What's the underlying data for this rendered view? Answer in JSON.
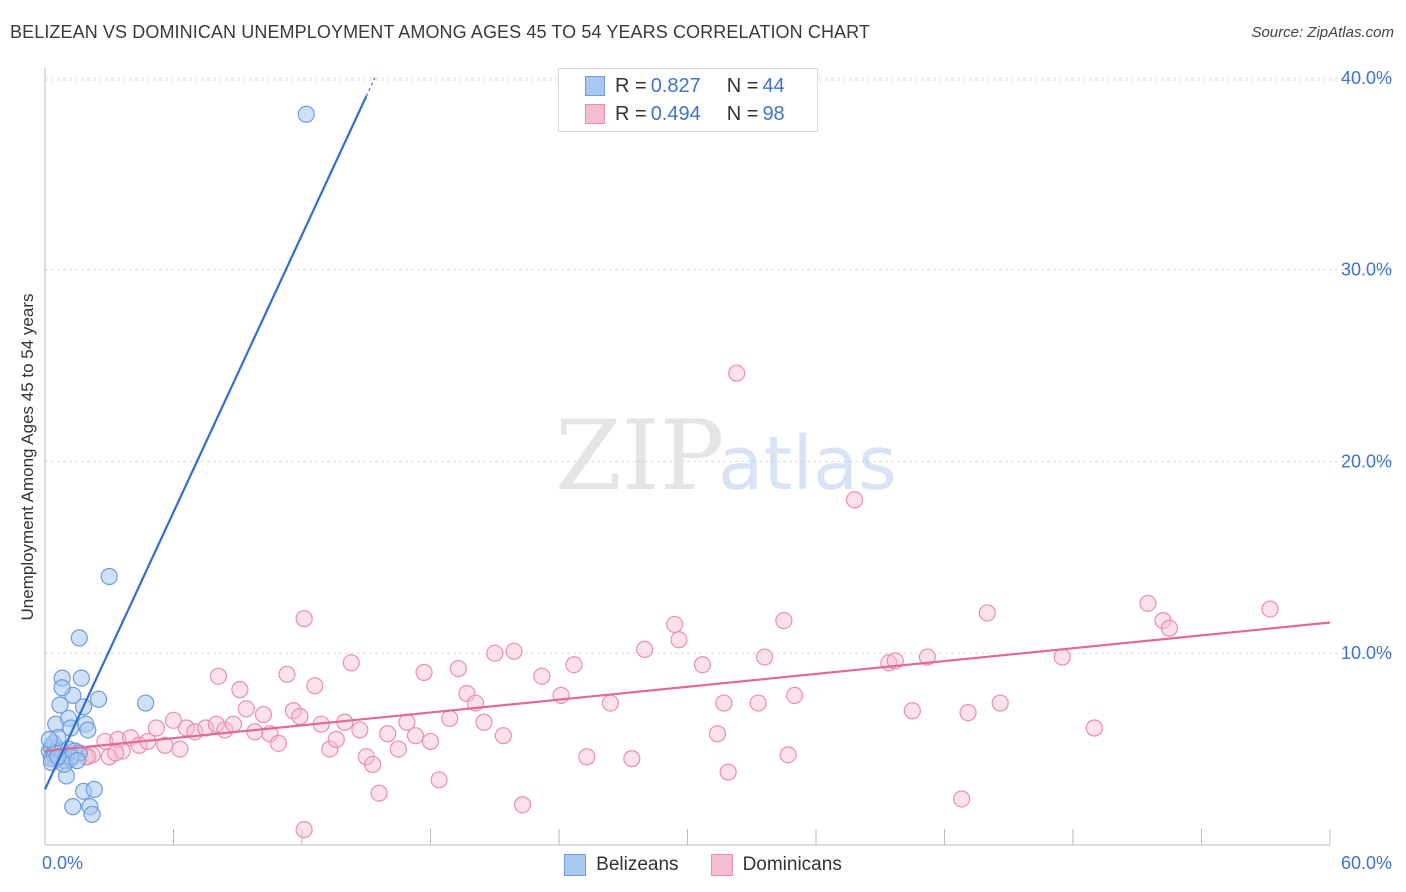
{
  "title": "BELIZEAN VS DOMINICAN UNEMPLOYMENT AMONG AGES 45 TO 54 YEARS CORRELATION CHART",
  "source": "Source: ZipAtlas.com",
  "watermark": {
    "zip": "ZIP",
    "atlas": "atlas"
  },
  "legend": {
    "rows": [
      {
        "r_label": "R =",
        "r_value": "0.827",
        "n_label": "N =",
        "n_value": "44"
      },
      {
        "r_label": "R =",
        "r_value": "0.494",
        "n_label": "N =",
        "n_value": "98"
      }
    ]
  },
  "colors": {
    "belizean_fill": "#a9c8f0",
    "belizean_stroke": "#6b9de0",
    "belizean_line": "#2f6fce",
    "dominican_fill": "#f6bcd0",
    "dominican_stroke": "#ea8fae",
    "dominican_line": "#e06a96",
    "axis_text": "#3f74c9",
    "grid": "#dddddd"
  },
  "chart_data": {
    "type": "scatter",
    "title": "BELIZEAN VS DOMINICAN UNEMPLOYMENT AMONG AGES 45 TO 54 YEARS CORRELATION CHART",
    "xlabel": "",
    "ylabel": "Unemployment Among Ages 45 to 54 years",
    "xlim": [
      0,
      60
    ],
    "ylim": [
      0,
      40
    ],
    "x_tick_labels": [
      "0.0%",
      "60.0%"
    ],
    "y_ticks": [
      10,
      20,
      30,
      40
    ],
    "y_tick_labels": [
      "10.0%",
      "20.0%",
      "30.0%",
      "40.0%"
    ],
    "grid": true,
    "legend_position": "top-center",
    "series": [
      {
        "name": "Belizeans",
        "r": 0.827,
        "n": 44,
        "trend": {
          "x0": 0.0,
          "y0": 2.9,
          "x1": 15.4,
          "y1": 40.0,
          "dashed_from_x": 15.0
        },
        "points": [
          [
            0.2,
            4.9
          ],
          [
            0.3,
            5.1
          ],
          [
            0.4,
            4.7
          ],
          [
            0.3,
            4.5
          ],
          [
            0.5,
            4.8
          ],
          [
            0.6,
            5.0
          ],
          [
            0.4,
            5.3
          ],
          [
            0.7,
            4.6
          ],
          [
            0.8,
            4.9
          ],
          [
            0.9,
            4.4
          ],
          [
            1.0,
            4.7
          ],
          [
            1.1,
            5.0
          ],
          [
            0.5,
            6.3
          ],
          [
            0.7,
            7.3
          ],
          [
            1.1,
            6.6
          ],
          [
            1.2,
            6.1
          ],
          [
            0.8,
            8.7
          ],
          [
            1.3,
            7.8
          ],
          [
            0.8,
            8.2
          ],
          [
            1.2,
            4.5
          ],
          [
            1.0,
            3.6
          ],
          [
            1.4,
            4.9
          ],
          [
            1.6,
            4.8
          ],
          [
            1.2,
            4.6
          ],
          [
            1.9,
            6.3
          ],
          [
            2.0,
            6.0
          ],
          [
            1.8,
            7.2
          ],
          [
            1.7,
            8.7
          ],
          [
            2.5,
            7.6
          ],
          [
            1.6,
            10.8
          ],
          [
            3.0,
            14.0
          ],
          [
            4.7,
            7.4
          ],
          [
            1.3,
            2.0
          ],
          [
            1.8,
            2.8
          ],
          [
            2.1,
            2.0
          ],
          [
            2.3,
            2.9
          ],
          [
            2.2,
            1.6
          ],
          [
            0.6,
            5.6
          ],
          [
            0.3,
            4.3
          ],
          [
            0.9,
            4.2
          ],
          [
            1.5,
            4.4
          ],
          [
            0.2,
            5.5
          ],
          [
            12.2,
            38.1
          ],
          [
            0.6,
            4.6
          ]
        ]
      },
      {
        "name": "Dominicans",
        "r": 0.494,
        "n": 98,
        "trend": {
          "x0": 0.0,
          "y0": 4.9,
          "x1": 60.0,
          "y1": 11.6
        },
        "points": [
          [
            0.3,
            4.6
          ],
          [
            0.5,
            4.5
          ],
          [
            0.8,
            4.9
          ],
          [
            1.0,
            4.4
          ],
          [
            1.5,
            4.8
          ],
          [
            1.9,
            4.6
          ],
          [
            2.2,
            4.7
          ],
          [
            2.8,
            5.4
          ],
          [
            3.0,
            4.6
          ],
          [
            3.4,
            5.5
          ],
          [
            3.6,
            4.9
          ],
          [
            4.0,
            5.6
          ],
          [
            4.4,
            5.2
          ],
          [
            4.8,
            5.4
          ],
          [
            5.2,
            6.1
          ],
          [
            5.6,
            5.2
          ],
          [
            6.0,
            6.5
          ],
          [
            6.3,
            5.0
          ],
          [
            6.6,
            6.1
          ],
          [
            7.0,
            5.9
          ],
          [
            7.5,
            6.1
          ],
          [
            8.0,
            6.3
          ],
          [
            8.1,
            8.8
          ],
          [
            8.4,
            6.0
          ],
          [
            8.8,
            6.3
          ],
          [
            9.1,
            8.1
          ],
          [
            9.4,
            7.1
          ],
          [
            9.8,
            5.9
          ],
          [
            10.2,
            6.8
          ],
          [
            10.5,
            5.8
          ],
          [
            10.9,
            5.3
          ],
          [
            11.3,
            8.9
          ],
          [
            11.6,
            7.0
          ],
          [
            11.9,
            6.7
          ],
          [
            12.1,
            11.8
          ],
          [
            12.6,
            8.3
          ],
          [
            12.9,
            6.3
          ],
          [
            13.3,
            5.0
          ],
          [
            13.6,
            5.5
          ],
          [
            14.0,
            6.4
          ],
          [
            14.3,
            9.5
          ],
          [
            14.7,
            6.0
          ],
          [
            15.0,
            4.6
          ],
          [
            15.3,
            4.2
          ],
          [
            15.6,
            2.7
          ],
          [
            16.0,
            5.8
          ],
          [
            16.5,
            5.0
          ],
          [
            16.9,
            6.4
          ],
          [
            17.3,
            5.7
          ],
          [
            17.7,
            9.0
          ],
          [
            18.0,
            5.4
          ],
          [
            18.4,
            3.4
          ],
          [
            18.9,
            6.6
          ],
          [
            19.3,
            9.2
          ],
          [
            19.7,
            7.9
          ],
          [
            20.1,
            7.4
          ],
          [
            20.5,
            6.4
          ],
          [
            21.0,
            10.0
          ],
          [
            21.4,
            5.7
          ],
          [
            21.9,
            10.1
          ],
          [
            22.3,
            2.1
          ],
          [
            23.2,
            8.8
          ],
          [
            24.1,
            7.8
          ],
          [
            24.7,
            9.4
          ],
          [
            25.3,
            4.6
          ],
          [
            26.4,
            7.4
          ],
          [
            27.4,
            4.5
          ],
          [
            28.0,
            10.2
          ],
          [
            29.4,
            11.5
          ],
          [
            29.6,
            10.7
          ],
          [
            30.7,
            9.4
          ],
          [
            31.4,
            5.8
          ],
          [
            31.7,
            7.4
          ],
          [
            31.9,
            3.8
          ],
          [
            32.3,
            24.6
          ],
          [
            33.3,
            7.4
          ],
          [
            33.6,
            9.8
          ],
          [
            34.5,
            11.7
          ],
          [
            34.7,
            4.7
          ],
          [
            35.0,
            7.8
          ],
          [
            37.8,
            18.0
          ],
          [
            39.4,
            9.5
          ],
          [
            39.7,
            9.6
          ],
          [
            40.5,
            7.0
          ],
          [
            41.2,
            9.8
          ],
          [
            42.8,
            2.4
          ],
          [
            43.1,
            6.9
          ],
          [
            44.0,
            12.1
          ],
          [
            44.6,
            7.4
          ],
          [
            47.5,
            9.8
          ],
          [
            49.0,
            6.1
          ],
          [
            51.5,
            12.6
          ],
          [
            52.2,
            11.7
          ],
          [
            52.5,
            11.3
          ],
          [
            57.2,
            12.3
          ],
          [
            3.3,
            4.8
          ],
          [
            12.1,
            0.8
          ],
          [
            2.0,
            4.6
          ]
        ]
      }
    ]
  },
  "bottom_legend": [
    {
      "label": "Belizeans"
    },
    {
      "label": "Dominicans"
    }
  ]
}
